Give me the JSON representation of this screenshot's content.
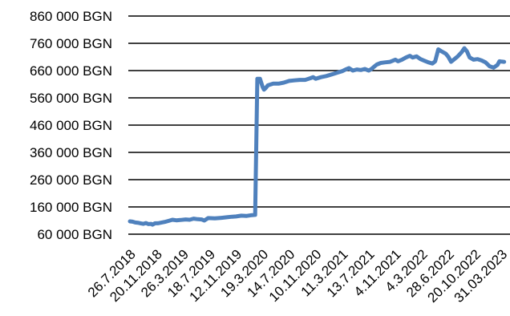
{
  "chart_data": {
    "type": "line",
    "title": "",
    "xlabel": "",
    "ylabel": "",
    "y_unit": "BGN",
    "ylim": [
      60000,
      860000
    ],
    "grid": true,
    "legend": "none",
    "colors": {
      "line": "#4f81bd",
      "grid": "#000000",
      "text": "#000000"
    },
    "y_ticks": [
      {
        "value": 860000,
        "label": "860 000 BGN"
      },
      {
        "value": 760000,
        "label": "760 000 BGN"
      },
      {
        "value": 660000,
        "label": "660 000 BGN"
      },
      {
        "value": 560000,
        "label": "560 000 BGN"
      },
      {
        "value": 460000,
        "label": "460 000 BGN"
      },
      {
        "value": 360000,
        "label": "360 000 BGN"
      },
      {
        "value": 260000,
        "label": "260 000 BGN"
      },
      {
        "value": 160000,
        "label": "160 000 BGN"
      },
      {
        "value": 60000,
        "label": "60 000 BGN"
      }
    ],
    "x_ticks": [
      "26.7.2018",
      "20.11.2018",
      "26.3.2019",
      "18.7.2019",
      "12.11.2019",
      "19.3.2020",
      "14.7.2020",
      "10.11.2020",
      "11.3.2021",
      "13.7.2021",
      "4.11.2021",
      "4.3.2022",
      "28.6.2022",
      "20.10.2022",
      "31.03.2023"
    ],
    "series": [
      {
        "values": [
          [
            0.0,
            107000
          ],
          [
            0.1,
            106000
          ],
          [
            0.2,
            103000
          ],
          [
            0.3,
            102000
          ],
          [
            0.4,
            100000
          ],
          [
            0.5,
            98000
          ],
          [
            0.6,
            101000
          ],
          [
            0.7,
            97000
          ],
          [
            0.8,
            98000
          ],
          [
            0.85,
            95000
          ],
          [
            0.95,
            100000
          ],
          [
            1.05,
            100000
          ],
          [
            1.2,
            103000
          ],
          [
            1.35,
            106000
          ],
          [
            1.5,
            110000
          ],
          [
            1.6,
            113000
          ],
          [
            1.75,
            111000
          ],
          [
            1.9,
            112000
          ],
          [
            2.1,
            114000
          ],
          [
            2.25,
            113000
          ],
          [
            2.4,
            117000
          ],
          [
            2.55,
            115000
          ],
          [
            2.7,
            114000
          ],
          [
            2.8,
            110000
          ],
          [
            2.95,
            119000
          ],
          [
            3.2,
            118000
          ],
          [
            3.45,
            120000
          ],
          [
            3.65,
            122000
          ],
          [
            3.85,
            124000
          ],
          [
            4.0,
            125000
          ],
          [
            4.2,
            128000
          ],
          [
            4.4,
            127000
          ],
          [
            4.6,
            130000
          ],
          [
            4.72,
            131000
          ],
          [
            4.8,
            630000
          ],
          [
            4.9,
            630000
          ],
          [
            5.0,
            600000
          ],
          [
            5.05,
            590000
          ],
          [
            5.1,
            594000
          ],
          [
            5.2,
            606000
          ],
          [
            5.4,
            612000
          ],
          [
            5.6,
            612000
          ],
          [
            5.8,
            616000
          ],
          [
            6.0,
            622000
          ],
          [
            6.2,
            624000
          ],
          [
            6.4,
            626000
          ],
          [
            6.6,
            626000
          ],
          [
            6.8,
            632000
          ],
          [
            6.9,
            636000
          ],
          [
            7.0,
            630000
          ],
          [
            7.2,
            636000
          ],
          [
            7.4,
            640000
          ],
          [
            7.6,
            646000
          ],
          [
            7.8,
            652000
          ],
          [
            8.0,
            658000
          ],
          [
            8.15,
            665000
          ],
          [
            8.25,
            669000
          ],
          [
            8.4,
            660000
          ],
          [
            8.55,
            664000
          ],
          [
            8.7,
            662000
          ],
          [
            8.85,
            666000
          ],
          [
            9.0,
            660000
          ],
          [
            9.1,
            666000
          ],
          [
            9.2,
            674000
          ],
          [
            9.3,
            682000
          ],
          [
            9.45,
            688000
          ],
          [
            9.6,
            690000
          ],
          [
            9.8,
            692000
          ],
          [
            10.0,
            700000
          ],
          [
            10.1,
            694000
          ],
          [
            10.25,
            700000
          ],
          [
            10.4,
            708000
          ],
          [
            10.55,
            714000
          ],
          [
            10.65,
            708000
          ],
          [
            10.8,
            712000
          ],
          [
            10.95,
            702000
          ],
          [
            11.1,
            696000
          ],
          [
            11.25,
            690000
          ],
          [
            11.4,
            686000
          ],
          [
            11.5,
            694000
          ],
          [
            11.62,
            738000
          ],
          [
            11.75,
            730000
          ],
          [
            11.9,
            722000
          ],
          [
            12.0,
            710000
          ],
          [
            12.1,
            692000
          ],
          [
            12.2,
            700000
          ],
          [
            12.35,
            712000
          ],
          [
            12.5,
            728000
          ],
          [
            12.6,
            742000
          ],
          [
            12.7,
            730000
          ],
          [
            12.8,
            708000
          ],
          [
            12.95,
            700000
          ],
          [
            13.1,
            702000
          ],
          [
            13.25,
            697000
          ],
          [
            13.4,
            690000
          ],
          [
            13.55,
            676000
          ],
          [
            13.7,
            671000
          ],
          [
            13.85,
            681000
          ],
          [
            13.92,
            694000
          ],
          [
            14.0,
            693000
          ],
          [
            14.1,
            692000
          ]
        ]
      }
    ]
  }
}
